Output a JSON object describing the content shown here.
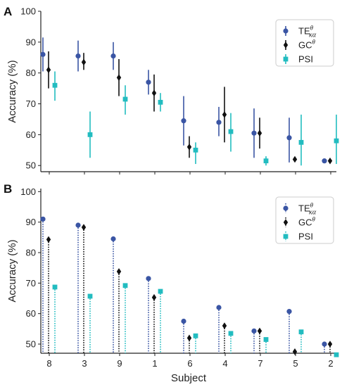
{
  "chart_data": [
    {
      "type": "scatter",
      "panel": "A",
      "subtitle": "",
      "ylabel": "Accuracy (%)",
      "xlabel": "",
      "ylim": [
        48,
        100
      ],
      "yticks": [
        50,
        60,
        70,
        80,
        90,
        100
      ],
      "categories": [
        "8",
        "3",
        "9",
        "1",
        "6",
        "4",
        "7",
        "5",
        "2"
      ],
      "show_tick_labels": false,
      "grid": false,
      "legend_position": "top-right",
      "series": [
        {
          "name": "TE",
          "name_sup": "θ",
          "name_sub": "κα",
          "marker": "circle",
          "color": "#3a55a4",
          "values": [
            86,
            85.5,
            85.5,
            77,
            64.5,
            64,
            60.5,
            59,
            51.5
          ],
          "err_low": [
            80.5,
            80.5,
            81,
            73,
            56.5,
            59.5,
            52.5,
            51,
            51
          ],
          "err_high": [
            91.5,
            90.5,
            90,
            81,
            72.5,
            69,
            68.5,
            65.5,
            51.5
          ]
        },
        {
          "name": "GC",
          "name_sup": "θ",
          "name_sub": "",
          "marker": "diamond",
          "color": "#111111",
          "values": [
            81,
            83.5,
            78.5,
            73.5,
            56,
            66.5,
            60.5,
            52,
            51.5
          ],
          "err_low": [
            75,
            81,
            72.5,
            67.5,
            52.5,
            57.5,
            55.5,
            51.5,
            51
          ],
          "err_high": [
            87,
            86.5,
            84.5,
            79.5,
            59.5,
            75.5,
            65.5,
            52.5,
            52
          ]
        },
        {
          "name": "PSI",
          "name_sup": "",
          "name_sub": "",
          "marker": "square",
          "color": "#22bcc0",
          "values": [
            76,
            60,
            71.5,
            70.5,
            55,
            61,
            51.5,
            57.5,
            58
          ],
          "err_low": [
            71,
            52.5,
            66.5,
            67.5,
            50.5,
            54.5,
            50,
            50,
            50.5
          ],
          "err_high": [
            80.5,
            67.5,
            76,
            73.5,
            57.5,
            67,
            53,
            66.5,
            66.5
          ]
        }
      ]
    },
    {
      "type": "scatter",
      "panel": "B",
      "subtitle": "",
      "ylabel": "Accuracy (%)",
      "xlabel": "Subject",
      "ylim": [
        47,
        101
      ],
      "yticks": [
        50,
        60,
        70,
        80,
        90,
        100
      ],
      "categories": [
        "8",
        "3",
        "9",
        "1",
        "6",
        "4",
        "7",
        "5",
        "2"
      ],
      "show_tick_labels": true,
      "grid": false,
      "stem_baseline": 47,
      "legend_position": "top-right",
      "series": [
        {
          "name": "TE",
          "name_sup": "θ",
          "name_sub": "κα",
          "marker": "circle",
          "color": "#3a55a4",
          "values": [
            91,
            89,
            84.5,
            71.5,
            57.5,
            62,
            54.3,
            60.7,
            50
          ]
        },
        {
          "name": "GC",
          "name_sup": "θ",
          "name_sub": "",
          "marker": "diamond",
          "color": "#111111",
          "values": [
            84.3,
            88.3,
            73.8,
            65.3,
            52,
            56,
            54.3,
            47.5,
            50
          ]
        },
        {
          "name": "PSI",
          "name_sup": "",
          "name_sub": "",
          "marker": "square",
          "color": "#22bcc0",
          "values": [
            68.7,
            65.7,
            69.2,
            67.3,
            52.7,
            53.5,
            51.5,
            54,
            46.5
          ]
        }
      ]
    }
  ]
}
